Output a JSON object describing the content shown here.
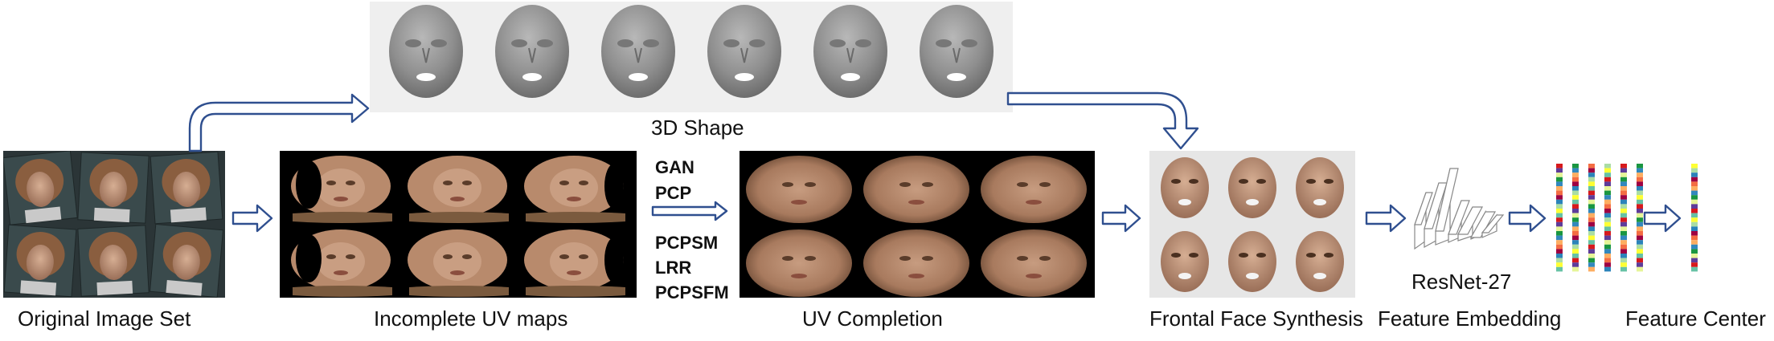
{
  "captions": {
    "original": "Original Image Set",
    "incomplete": "Incomplete UV maps",
    "completion": "UV Completion",
    "frontal": "Frontal Face Synthesis",
    "embedding": "Feature Embedding",
    "center": "Feature Center",
    "shape": "3D Shape",
    "network": "ResNet-27"
  },
  "methods_top": [
    "GAN",
    "PCP"
  ],
  "methods_bottom": [
    "PCPSM",
    "LRR",
    "PCPSFM"
  ],
  "colors": {
    "arrow": "#2f4f8f",
    "shape_panel": "#efefef",
    "face_panel": "#e6e6e6",
    "skin": "#b99178",
    "hair": "#6b4a33"
  }
}
